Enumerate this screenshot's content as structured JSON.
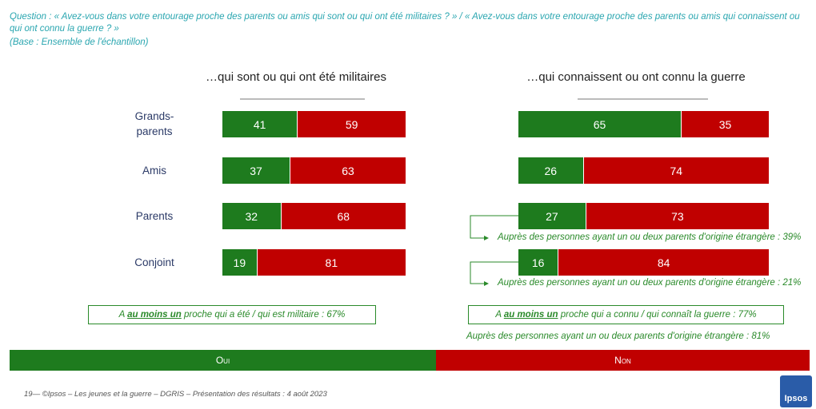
{
  "question": "Question : « Avez-vous dans votre entourage proche des parents ou amis qui sont ou qui ont été militaires ? » / « Avez-vous dans votre entourage proche des parents ou amis qui connaissent ou qui ont connu la guerre ? »",
  "base": "(Base : Ensemble de l'échantillon)",
  "chart_data": [
    {
      "type": "bar",
      "orientation": "horizontal",
      "stacked": true,
      "title": "…qui sont ou qui ont été militaires",
      "categories": [
        "Grands-\nparents",
        "Amis",
        "Parents",
        "Conjoint"
      ],
      "xlim": [
        0,
        100
      ],
      "series": [
        {
          "name": "Oui",
          "color": "#1e7b1e",
          "values": [
            41,
            37,
            32,
            19
          ]
        },
        {
          "name": "Non",
          "color": "#c00000",
          "values": [
            59,
            63,
            68,
            81
          ]
        }
      ],
      "summary": [
        "A ",
        "au moins un",
        " proche qui a été / qui est militaire : 67%"
      ]
    },
    {
      "type": "bar",
      "orientation": "horizontal",
      "stacked": true,
      "title": "…qui connaissent ou ont connu la guerre",
      "xlim": [
        0,
        100
      ],
      "series": [
        {
          "color": "#1e7b1e",
          "values": [
            65,
            26,
            27,
            16
          ]
        },
        {
          "color": "#c00000",
          "values": [
            35,
            74,
            73,
            84
          ]
        }
      ],
      "annotations": [
        "Auprès des personnes ayant un ou deux parents d'origine étrangère : 39%",
        "Auprès des personnes ayant un ou deux parents d'origine étrangère : 21%"
      ],
      "summary": [
        "A ",
        "au moins un",
        " proche qui a connu / qui connaît la guerre : 77%"
      ],
      "summary_note": "Auprès des personnes ayant un ou deux parents d'origine étrangère : 81%"
    }
  ],
  "footer": "19— ©Ipsos – Les jeunes et la guerre – DGRIS – Présentation des résultats : 4 août 2023",
  "logo": "Ipsos"
}
